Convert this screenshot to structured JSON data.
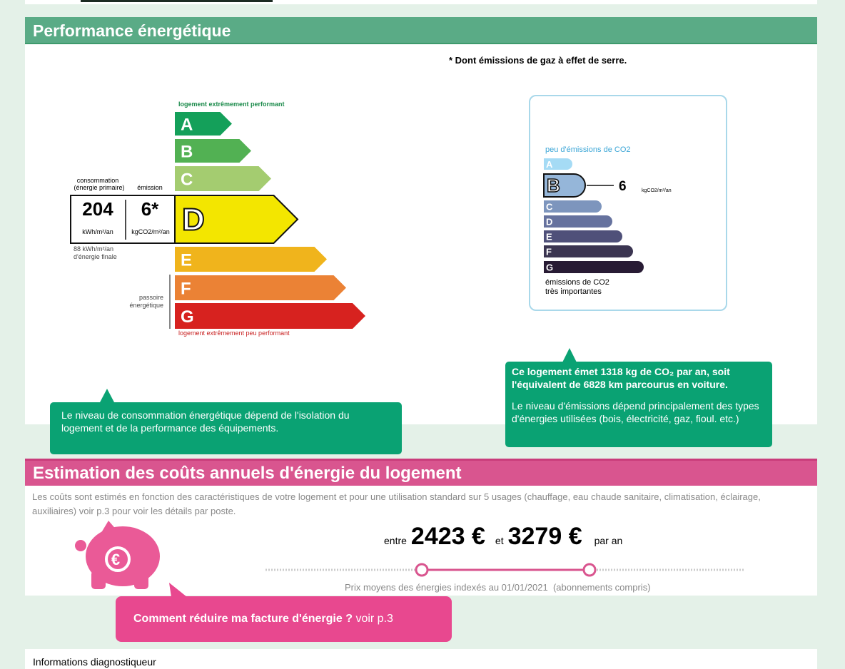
{
  "top_section": {
    "title": "Performance énergétique",
    "ges_note": "* Dont émissions de gaz à effet de serre."
  },
  "energy_label": {
    "top_label": "logement extrêmement performant",
    "bottom_label": "logement extrêmement peu performant",
    "classes": [
      "A",
      "B",
      "C",
      "D",
      "E",
      "F",
      "G"
    ],
    "consumption_header": [
      "consommation",
      "(énergie primaire)"
    ],
    "emission_header": "émission",
    "consumption_value": "204",
    "consumption_unit": "kWh/m²/an",
    "emission_value": "6*",
    "emission_unit": "kgCO2/m²/an",
    "final_energy": [
      "88 kWh/m²/an",
      "d'énergie finale"
    ],
    "passoire": [
      "passoire",
      "énergétique"
    ]
  },
  "climate_label": {
    "top_label": "peu d'émissions de CO2",
    "classes": [
      "A",
      "B",
      "C",
      "D",
      "E",
      "F",
      "G"
    ],
    "value": "6",
    "unit": "kgCO2/m²/an",
    "bottom_label": [
      "émissions de CO2",
      "très importantes"
    ]
  },
  "callouts": {
    "energy": "Le niveau de consommation énergétique dépend de l'isolation du logement et de la performance des équipements.",
    "climate": [
      "Ce logement émet 1318  kg de CO₂ par an, soit l'équivalent de 6828 km parcourus en voiture.",
      "Le niveau d'émissions dépend principalement des types d'énergies utilisées (bois, électricité, gaz, fioul. etc.)"
    ]
  },
  "cost_section": {
    "title": "Estimation des coûts annuels d'énergie du logement",
    "description": "Les coûts sont estimés en fonction des caractéristiques de votre logement et pour une utilisation standard sur 5 usages (chauffage, eau chaude sanitaire, climatisation, éclairage, auxiliaires) voir p.3 pour voir les détails par poste.",
    "range": {
      "prefix": "entre",
      "low": "2423 €",
      "joiner": "et",
      "high": "3279 €",
      "suffix": "par an"
    },
    "price_note": "Prix moyens des énergies indexés au 01/01/2021  (abonnements compris)",
    "cta": {
      "question": "Comment réduire ma facture d'énergie ?",
      "link": "voir p.3"
    }
  },
  "footer": {
    "title": "Informations diagnostiqueur"
  }
}
